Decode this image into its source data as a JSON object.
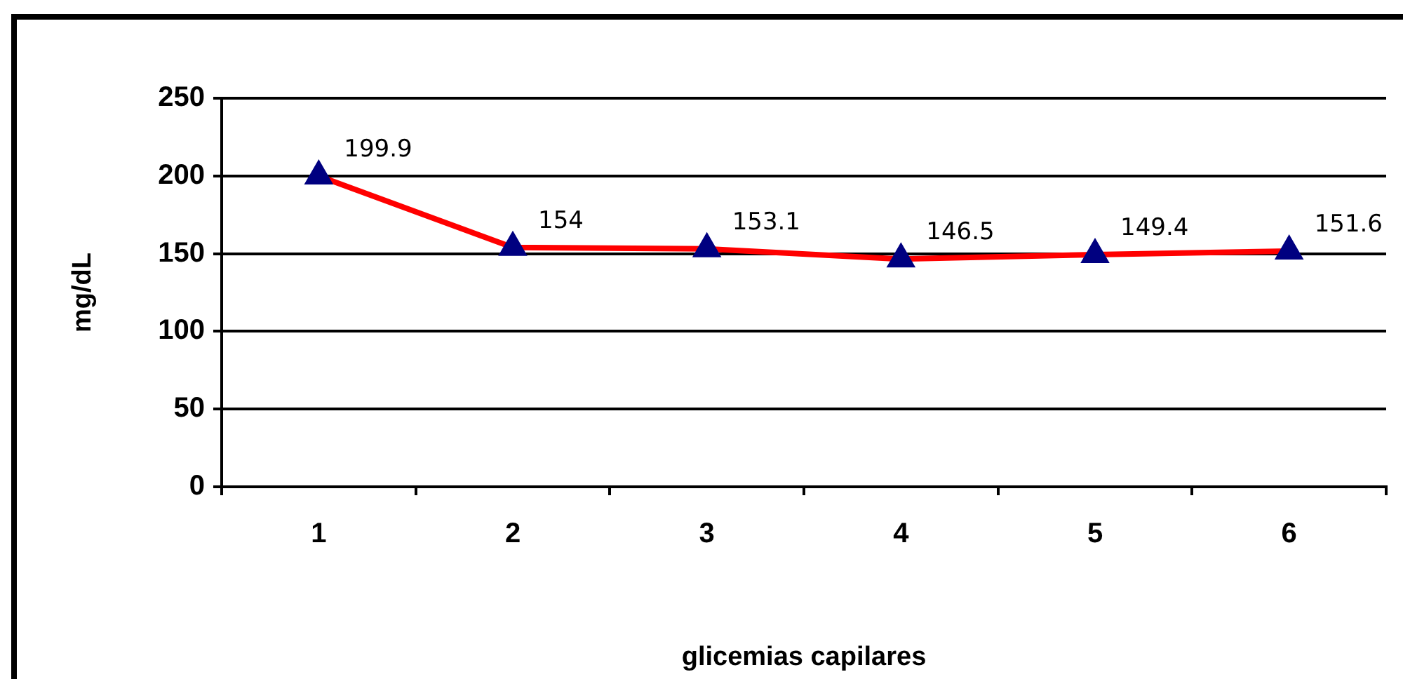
{
  "chart_data": {
    "type": "line",
    "xlabel": "glicemias capilares",
    "ylabel": "mg/dL",
    "categories": [
      "1",
      "2",
      "3",
      "4",
      "5",
      "6"
    ],
    "series": [
      {
        "color": "#ff0000",
        "values": [
          199.9,
          154,
          153.1,
          146.5,
          149.4,
          151.6
        ]
      }
    ],
    "marker": "triangle",
    "ylim": [
      0,
      250
    ],
    "yticks": [
      0,
      50,
      100,
      150,
      200,
      250
    ],
    "grid": "y",
    "legend": false,
    "data_labels": true
  }
}
